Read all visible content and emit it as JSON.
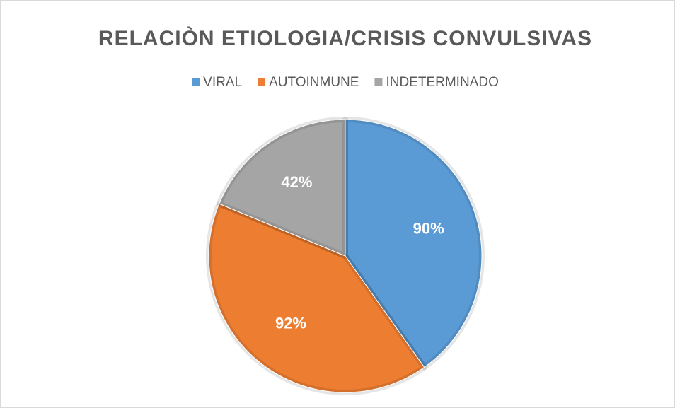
{
  "chart_data": {
    "type": "pie",
    "title": "RELACIÒN ETIOLOGIA/CRISIS CONVULSIVAS",
    "categories": [
      "VIRAL",
      "AUTOINMUNE",
      "INDETERMINADO"
    ],
    "values": [
      90,
      92,
      42
    ],
    "value_labels": [
      "90%",
      "92%",
      "42%"
    ],
    "colors": [
      "#5b9bd5",
      "#ed7d31",
      "#a5a5a5"
    ],
    "legend": "top"
  }
}
